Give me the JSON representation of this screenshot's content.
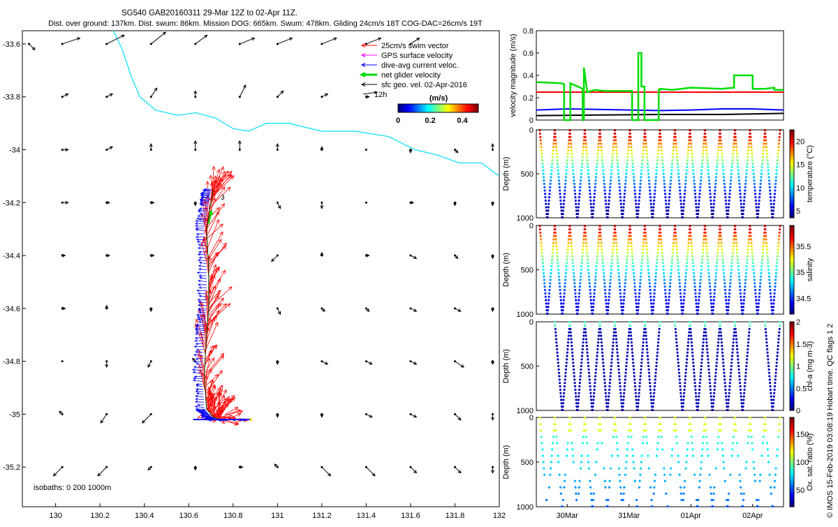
{
  "header": {
    "title": "SG540 GAB20160311 29-Mar 12Z to 02-Apr 11Z.",
    "subtitle": "Dist. over ground: 137km. Dist. swum: 86km. Mission DOG: 665km. Swum: 478km. Gliding 24cm/s 18T COG-DAC=26cm/s 19T"
  },
  "colors": {
    "swim": "#ff0000",
    "gps": "#ff00ff",
    "dac": "#0000ff",
    "net": "#00dd00",
    "sfc": "#000000",
    "coast": "#00e0ff"
  },
  "chart_data": [
    {
      "type": "quiver-map",
      "xlim": [
        129.85,
        132.0
      ],
      "ylim": [
        -35.35,
        -33.55
      ],
      "x_ticks": [
        "130",
        "130.2",
        "130.4",
        "130.6",
        "130.8",
        "131",
        "131.2",
        "131.4",
        "131.6",
        "131.8",
        "132"
      ],
      "y_ticks": [
        "-33.6",
        "-33.8",
        "-34",
        "-34.2",
        "-34.4",
        "-34.6",
        "-34.8",
        "-35",
        "-35.2"
      ],
      "legend": [
        {
          "label": "25cm/s swim vector",
          "color": "#ff0000"
        },
        {
          "label": "GPS surface velocity",
          "color": "#ff00ff"
        },
        {
          "label": "dive-avg current veloc.",
          "color": "#0000ff"
        },
        {
          "label": "net glider velocity",
          "color": "#00dd00"
        },
        {
          "label": "sfc geo. vel. 02-Apr-2016",
          "color": "#000000"
        }
      ],
      "legend_extra": "12h",
      "colorbar_label": "(m/s)",
      "colorbar_ticks": [
        "0",
        "0.2",
        "0.4"
      ],
      "colorbar_range": [
        0,
        0.5
      ],
      "isobaths_label": "isobaths: 0   200  1000m",
      "track_label": "3",
      "coastline": [
        [
          130.26,
          -33.55
        ],
        [
          130.3,
          -33.62
        ],
        [
          130.34,
          -33.72
        ],
        [
          130.38,
          -33.8
        ],
        [
          130.45,
          -33.85
        ],
        [
          130.55,
          -33.87
        ],
        [
          130.63,
          -33.86
        ],
        [
          130.72,
          -33.88
        ],
        [
          130.8,
          -33.92
        ],
        [
          130.87,
          -33.93
        ],
        [
          130.95,
          -33.9
        ],
        [
          131.05,
          -33.9
        ],
        [
          131.2,
          -33.93
        ],
        [
          131.35,
          -33.93
        ],
        [
          131.5,
          -33.95
        ],
        [
          131.62,
          -34.0
        ],
        [
          131.72,
          -34.02
        ],
        [
          131.82,
          -34.05
        ],
        [
          131.92,
          -34.05
        ],
        [
          132.0,
          -34.1
        ]
      ],
      "track": [
        [
          130.74,
          -35.02
        ],
        [
          130.71,
          -35.01
        ],
        [
          130.68,
          -34.98
        ],
        [
          130.67,
          -34.85
        ],
        [
          130.68,
          -34.7
        ],
        [
          130.69,
          -34.6
        ],
        [
          130.69,
          -34.45
        ],
        [
          130.68,
          -34.3
        ],
        [
          130.7,
          -34.2
        ],
        [
          130.71,
          -34.15
        ]
      ],
      "sfc_vectors": [
        {
          "x": 129.88,
          "y": -33.6,
          "u": 0.02,
          "v": -0.02
        },
        {
          "x": 130.03,
          "y": -33.6,
          "u": 0.06,
          "v": 0.02
        },
        {
          "x": 130.23,
          "y": -33.6,
          "u": 0.06,
          "v": 0.03
        },
        {
          "x": 130.43,
          "y": -33.6,
          "u": 0.05,
          "v": 0.04
        },
        {
          "x": 130.63,
          "y": -33.6,
          "u": 0.04,
          "v": 0.03
        },
        {
          "x": 130.83,
          "y": -33.6,
          "u": 0.05,
          "v": 0.02
        },
        {
          "x": 131.0,
          "y": -33.6,
          "u": 0.05,
          "v": 0.02
        },
        {
          "x": 131.2,
          "y": -33.6,
          "u": 0.05,
          "v": 0.02
        },
        {
          "x": 131.4,
          "y": -33.6,
          "u": 0.05,
          "v": 0.02
        },
        {
          "x": 131.6,
          "y": -33.6,
          "u": 0.03,
          "v": 0.02
        },
        {
          "x": 130.03,
          "y": -33.8,
          "u": 0.02,
          "v": 0.01
        },
        {
          "x": 130.23,
          "y": -33.8,
          "u": 0.02,
          "v": 0.01
        },
        {
          "x": 130.43,
          "y": -33.8,
          "u": 0.02,
          "v": 0.03
        },
        {
          "x": 130.63,
          "y": -33.8,
          "u": 0.0,
          "v": 0.02
        },
        {
          "x": 130.83,
          "y": -33.8,
          "u": 0.02,
          "v": 0.04
        },
        {
          "x": 131.0,
          "y": -33.8,
          "u": 0.02,
          "v": 0.02
        },
        {
          "x": 131.2,
          "y": -33.8,
          "u": 0.02,
          "v": 0.01
        },
        {
          "x": 131.4,
          "y": -33.8,
          "u": 0.01,
          "v": 0.0
        },
        {
          "x": 130.03,
          "y": -34.0,
          "u": 0.02,
          "v": 0.0
        },
        {
          "x": 130.23,
          "y": -34.0,
          "u": 0.02,
          "v": 0.01
        },
        {
          "x": 130.43,
          "y": -34.0,
          "u": 0.0,
          "v": 0.02
        },
        {
          "x": 130.63,
          "y": -34.0,
          "u": 0.0,
          "v": 0.03
        },
        {
          "x": 130.83,
          "y": -34.0,
          "u": 0.0,
          "v": 0.03
        },
        {
          "x": 131.0,
          "y": -34.0,
          "u": 0.0,
          "v": 0.02
        },
        {
          "x": 131.2,
          "y": -34.0,
          "u": 0.0,
          "v": 0.01
        },
        {
          "x": 131.4,
          "y": -34.0,
          "u": 0.0,
          "v": 0.0
        },
        {
          "x": 131.6,
          "y": -34.0,
          "u": 0.0,
          "v": -0.01
        },
        {
          "x": 131.8,
          "y": -34.0,
          "u": 0.01,
          "v": -0.01
        },
        {
          "x": 131.97,
          "y": -34.0,
          "u": 0.0,
          "v": 0.02
        },
        {
          "x": 130.03,
          "y": -34.2,
          "u": 0.02,
          "v": 0.0
        },
        {
          "x": 130.23,
          "y": -34.2,
          "u": 0.01,
          "v": 0.0
        },
        {
          "x": 130.43,
          "y": -34.2,
          "u": 0.01,
          "v": 0.0
        },
        {
          "x": 130.63,
          "y": -34.2,
          "u": 0.0,
          "v": -0.01
        },
        {
          "x": 131.0,
          "y": -34.2,
          "u": 0.01,
          "v": -0.02
        },
        {
          "x": 131.2,
          "y": -34.2,
          "u": 0.0,
          "v": -0.02
        },
        {
          "x": 131.4,
          "y": -34.2,
          "u": 0.0,
          "v": 0.0
        },
        {
          "x": 131.6,
          "y": -34.2,
          "u": 0.01,
          "v": 0.0
        },
        {
          "x": 131.8,
          "y": -34.2,
          "u": 0.0,
          "v": -0.01
        },
        {
          "x": 131.97,
          "y": -34.2,
          "u": 0.0,
          "v": -0.01
        },
        {
          "x": 130.03,
          "y": -34.4,
          "u": 0.01,
          "v": 0.0
        },
        {
          "x": 130.23,
          "y": -34.4,
          "u": 0.01,
          "v": 0.0
        },
        {
          "x": 130.43,
          "y": -34.4,
          "u": 0.01,
          "v": 0.0
        },
        {
          "x": 131.0,
          "y": -34.4,
          "u": -0.02,
          "v": -0.02
        },
        {
          "x": 131.2,
          "y": -34.4,
          "u": 0.0,
          "v": 0.01
        },
        {
          "x": 131.4,
          "y": -34.4,
          "u": 0.01,
          "v": 0.0
        },
        {
          "x": 131.6,
          "y": -34.4,
          "u": 0.02,
          "v": -0.01
        },
        {
          "x": 131.8,
          "y": -34.4,
          "u": 0.01,
          "v": -0.01
        },
        {
          "x": 131.97,
          "y": -34.4,
          "u": 0.0,
          "v": -0.01
        },
        {
          "x": 130.03,
          "y": -34.6,
          "u": 0.01,
          "v": 0.0
        },
        {
          "x": 130.23,
          "y": -34.6,
          "u": 0.0,
          "v": 0.01
        },
        {
          "x": 130.43,
          "y": -34.6,
          "u": 0.0,
          "v": -0.01
        },
        {
          "x": 131.0,
          "y": -34.6,
          "u": 0.01,
          "v": -0.02
        },
        {
          "x": 131.2,
          "y": -34.6,
          "u": 0.01,
          "v": -0.01
        },
        {
          "x": 131.4,
          "y": -34.6,
          "u": 0.01,
          "v": -0.01
        },
        {
          "x": 131.6,
          "y": -34.6,
          "u": 0.02,
          "v": -0.01
        },
        {
          "x": 131.8,
          "y": -34.6,
          "u": 0.02,
          "v": -0.01
        },
        {
          "x": 131.97,
          "y": -34.6,
          "u": 0.0,
          "v": -0.01
        },
        {
          "x": 130.03,
          "y": -34.8,
          "u": 0.0,
          "v": 0.0
        },
        {
          "x": 130.23,
          "y": -34.8,
          "u": 0.0,
          "v": -0.02
        },
        {
          "x": 130.43,
          "y": -34.8,
          "u": -0.01,
          "v": -0.02
        },
        {
          "x": 130.63,
          "y": -34.8,
          "u": -0.01,
          "v": 0.01
        },
        {
          "x": 131.0,
          "y": -34.8,
          "u": 0.0,
          "v": -0.01
        },
        {
          "x": 131.2,
          "y": -34.8,
          "u": 0.02,
          "v": -0.01
        },
        {
          "x": 131.4,
          "y": -34.8,
          "u": 0.02,
          "v": -0.01
        },
        {
          "x": 131.6,
          "y": -34.8,
          "u": 0.02,
          "v": -0.01
        },
        {
          "x": 131.8,
          "y": -34.8,
          "u": 0.03,
          "v": -0.02
        },
        {
          "x": 131.97,
          "y": -34.8,
          "u": 0.0,
          "v": -0.01
        },
        {
          "x": 130.03,
          "y": -35.0,
          "u": -0.01,
          "v": 0.01
        },
        {
          "x": 130.23,
          "y": -35.0,
          "u": -0.02,
          "v": -0.03
        },
        {
          "x": 130.43,
          "y": -35.0,
          "u": -0.03,
          "v": -0.03
        },
        {
          "x": 131.0,
          "y": -35.0,
          "u": 0.0,
          "v": -0.01
        },
        {
          "x": 131.2,
          "y": -35.0,
          "u": 0.0,
          "v": -0.01
        },
        {
          "x": 131.4,
          "y": -35.0,
          "u": 0.02,
          "v": -0.01
        },
        {
          "x": 131.6,
          "y": -35.0,
          "u": 0.02,
          "v": -0.01
        },
        {
          "x": 131.8,
          "y": -35.0,
          "u": 0.02,
          "v": -0.02
        },
        {
          "x": 131.97,
          "y": -35.0,
          "u": 0.0,
          "v": -0.02
        },
        {
          "x": 130.03,
          "y": -35.2,
          "u": -0.03,
          "v": -0.03
        },
        {
          "x": 130.23,
          "y": -35.2,
          "u": -0.03,
          "v": -0.03
        },
        {
          "x": 130.43,
          "y": -35.2,
          "u": -0.01,
          "v": -0.01
        },
        {
          "x": 130.63,
          "y": -35.2,
          "u": 0.0,
          "v": -0.01
        },
        {
          "x": 130.83,
          "y": -35.2,
          "u": 0.01,
          "v": 0.0
        },
        {
          "x": 131.0,
          "y": -35.2,
          "u": -0.01,
          "v": 0.01
        },
        {
          "x": 131.2,
          "y": -35.2,
          "u": 0.03,
          "v": -0.03
        },
        {
          "x": 131.4,
          "y": -35.2,
          "u": 0.03,
          "v": -0.03
        },
        {
          "x": 131.6,
          "y": -35.2,
          "u": 0.02,
          "v": -0.02
        },
        {
          "x": 131.8,
          "y": -35.2,
          "u": 0.02,
          "v": -0.02
        },
        {
          "x": 131.97,
          "y": -35.2,
          "u": 0.0,
          "v": -0.02
        }
      ]
    },
    {
      "type": "line",
      "ylabel": "velocity magnitude (m/s)",
      "ylim": [
        0,
        0.8
      ],
      "y_ticks": [
        "0",
        "0.2",
        "0.4",
        "0.6",
        "0.8"
      ],
      "xlim": [
        0,
        4
      ],
      "series": [
        {
          "color": "#ff0000",
          "x": [
            0,
            4
          ],
          "y": [
            0.25,
            0.25
          ]
        },
        {
          "color": "#0000ff",
          "x": [
            0,
            0.5,
            1.0,
            1.5,
            2.0,
            2.5,
            3.0,
            3.5,
            4.0
          ],
          "y": [
            0.09,
            0.1,
            0.095,
            0.09,
            0.085,
            0.09,
            0.1,
            0.1,
            0.09
          ]
        },
        {
          "color": "#000000",
          "x": [
            0,
            1.0,
            2.0,
            3.0,
            3.5,
            4.0
          ],
          "y": [
            0.04,
            0.045,
            0.05,
            0.05,
            0.055,
            0.06
          ]
        },
        {
          "color": "#00dd00",
          "x": [
            0,
            0.4,
            0.45,
            0.45,
            0.55,
            0.55,
            0.75,
            0.75,
            0.77,
            0.77,
            0.82,
            0.82,
            0.95,
            1.1,
            1.55,
            1.55,
            1.65,
            1.65,
            1.7,
            1.7,
            1.75,
            1.75,
            1.98,
            1.98,
            2.0,
            2.0,
            2.2,
            2.5,
            3.0,
            3.2,
            3.2,
            3.35,
            3.5,
            3.5,
            3.7,
            3.85,
            3.85,
            4.0
          ],
          "y": [
            0.34,
            0.33,
            0.32,
            0.0,
            0.0,
            0.33,
            0.28,
            0.0,
            0.0,
            0.47,
            0.27,
            0.25,
            0.27,
            0.26,
            0.26,
            0.0,
            0.0,
            0.6,
            0.6,
            0.3,
            0.3,
            0.0,
            0.0,
            0.27,
            0.27,
            0.28,
            0.27,
            0.29,
            0.28,
            0.29,
            0.4,
            0.4,
            0.4,
            0.28,
            0.28,
            0.29,
            0.27,
            0.27
          ]
        }
      ]
    },
    {
      "type": "scatter",
      "panel": "temperature",
      "ylabel": "Depth (m)",
      "ylim": [
        0,
        1000
      ],
      "y_ticks": [
        "0",
        "500",
        "1000"
      ],
      "colorbar_label": "temperature (°C)",
      "colorbar_ticks": [
        "5",
        "10",
        "15",
        "20"
      ],
      "colorbar_range": [
        3.5,
        22.5
      ],
      "dives": 16,
      "max_depth": 1000,
      "surface_value": 22,
      "bottom_value": 4
    },
    {
      "type": "scatter",
      "panel": "salinity",
      "ylabel": "Depth (m)",
      "ylim": [
        0,
        1000
      ],
      "y_ticks": [
        "0",
        "500",
        "1000"
      ],
      "colorbar_label": "salinity",
      "colorbar_ticks": [
        "34.5",
        "35",
        "35.5"
      ],
      "colorbar_range": [
        34.2,
        35.9
      ],
      "dives": 16,
      "max_depth": 1000,
      "surface_value": 35.8,
      "bottom_value": 34.35
    },
    {
      "type": "scatter",
      "panel": "chlorophyll",
      "ylabel": "Depth (m)",
      "ylim": [
        0,
        1000
      ],
      "y_ticks": [
        "0",
        "500",
        "1000"
      ],
      "colorbar_label": "chl-a (mg m-3)",
      "colorbar_ticks": [
        "0",
        "0.5",
        "1",
        "1.5",
        "2"
      ],
      "colorbar_range": [
        0,
        2
      ],
      "dives": 16,
      "present_dives": [
        1,
        2,
        3,
        4,
        5,
        6,
        7,
        9,
        10,
        11,
        12,
        13,
        15
      ]
    },
    {
      "type": "scatter",
      "panel": "oxygen",
      "ylabel": "Depth (m)",
      "ylim": [
        0,
        1000
      ],
      "y_ticks": [
        "0",
        "500",
        "1000"
      ],
      "colorbar_label": "Ox. sat. ratio (%)",
      "colorbar_ticks": [
        "50",
        "100",
        "150"
      ],
      "colorbar_range": [
        20,
        180
      ],
      "dives": 16,
      "x_ticks": [
        "30Mar",
        "31Mar",
        "01Apr",
        "02Apr"
      ],
      "x_tick_days": [
        0.5,
        1.5,
        2.5,
        3.5
      ]
    }
  ],
  "side_note": "© IMOS 15-Feb-2019 03:08:19 Hobart time. QC flags 1  2"
}
